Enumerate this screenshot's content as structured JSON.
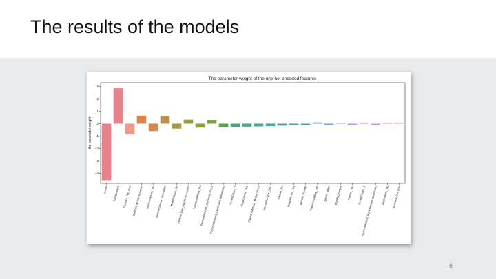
{
  "slide": {
    "title": "The results of the models",
    "page_number": "6"
  },
  "colors": {
    "band": "#e9eaec",
    "palette": [
      "#e8828a",
      "#ee9a87",
      "#d8864d",
      "#b8924a",
      "#a8993e",
      "#8f9d3c",
      "#76a23f",
      "#4ea849",
      "#47a77d",
      "#48a58e",
      "#49a39c",
      "#4aa1a8",
      "#4c9fb6",
      "#6c9fe2",
      "#8c9ff0",
      "#ab92ee",
      "#c98bea",
      "#e382db",
      "#ec88c0"
    ]
  },
  "chart_data": {
    "type": "bar",
    "title": "The parameter weight of the one hot encoded features",
    "xlabel": "",
    "ylabel": "the parameter weight",
    "ylim": [
      -4.8,
      3.3
    ],
    "yticks": [
      3,
      2,
      1,
      0,
      -1,
      -2,
      -3,
      -4
    ],
    "grid": false,
    "legend": "none",
    "categories": [
      "tenure",
      "TotalCharges",
      "Contract_Two year",
      "Contract_Month-to-month",
      "InternetService_No",
      "InternetService_Fiber optic",
      "MultipleLines_No",
      "MultipleLines_No phone service",
      "PaperlessBilling_No",
      "PaymentMethod_Electronic check",
      "PaymentMethod_Credit card (automatic)",
      "SeniorCitizen_0",
      "Dependents_Yes",
      "PaymentMethod_Mailed check",
      "InternetService_DSL",
      "Partner_No",
      "MultipleLines_Yes",
      "gender_Female",
      "PaperlessBilling_Yes",
      "gender_Male",
      "MonthlyCharges",
      "Partner_Yes",
      "SeniorCitizen_1",
      "PaymentMethod_Bank transfer (automatic)",
      "Dependents_No",
      "Contract_One year"
    ],
    "values": [
      -4.6,
      2.85,
      -0.85,
      0.65,
      -0.6,
      0.62,
      -0.4,
      0.32,
      -0.32,
      0.3,
      -0.28,
      -0.26,
      -0.24,
      -0.22,
      -0.2,
      -0.16,
      -0.14,
      -0.12,
      0.1,
      -0.08,
      0.06,
      -0.06,
      0.05,
      -0.05,
      0.03,
      0.02
    ]
  }
}
